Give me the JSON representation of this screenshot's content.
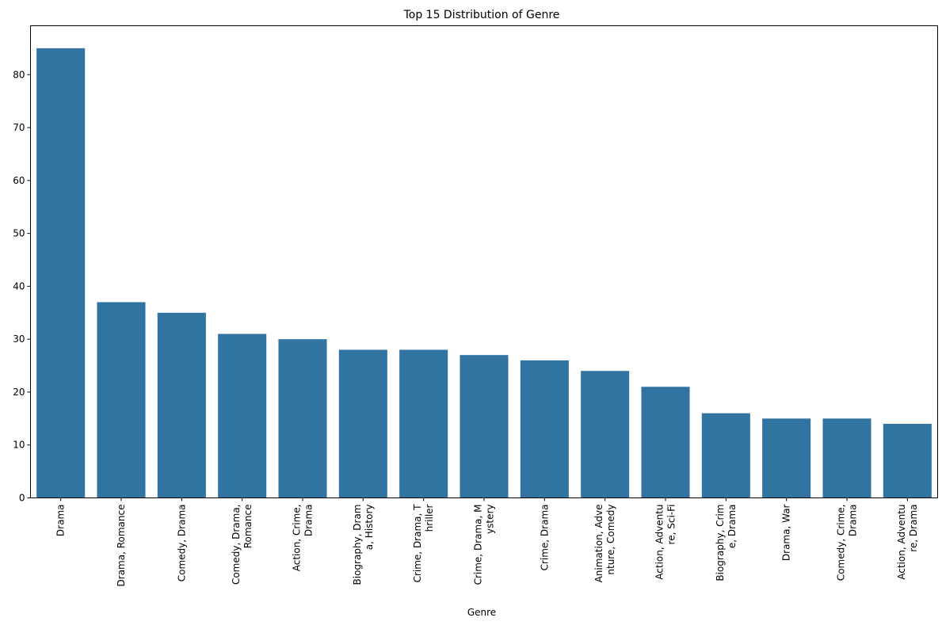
{
  "chart_data": {
    "type": "bar",
    "title": "Top 15 Distribution of Genre",
    "xlabel": "Genre",
    "ylabel": "",
    "ylim": [
      0,
      89.25
    ],
    "yticks": [
      0,
      10,
      20,
      30,
      40,
      50,
      60,
      70,
      80
    ],
    "grid": false,
    "bar_color": "#3274a1",
    "categories": [
      [
        "Drama"
      ],
      [
        "Drama, Romance"
      ],
      [
        "Comedy, Drama"
      ],
      [
        "Comedy, Drama,",
        "Romance"
      ],
      [
        "Action, Crime,",
        "Drama"
      ],
      [
        "Biography, Dram",
        "a, History"
      ],
      [
        "Crime, Drama, T",
        "hriller"
      ],
      [
        "Crime, Drama, M",
        "ystery"
      ],
      [
        "Crime, Drama"
      ],
      [
        "Animation, Adve",
        "nture, Comedy"
      ],
      [
        "Action, Adventu",
        "re, Sci-Fi"
      ],
      [
        "Biography, Crim",
        "e, Drama"
      ],
      [
        "Drama, War"
      ],
      [
        "Comedy, Crime,",
        "Drama"
      ],
      [
        "Action, Adventu",
        "re, Drama"
      ]
    ],
    "values": [
      85,
      37,
      35,
      31,
      30,
      28,
      28,
      27,
      26,
      24,
      21,
      16,
      15,
      15,
      14
    ]
  }
}
